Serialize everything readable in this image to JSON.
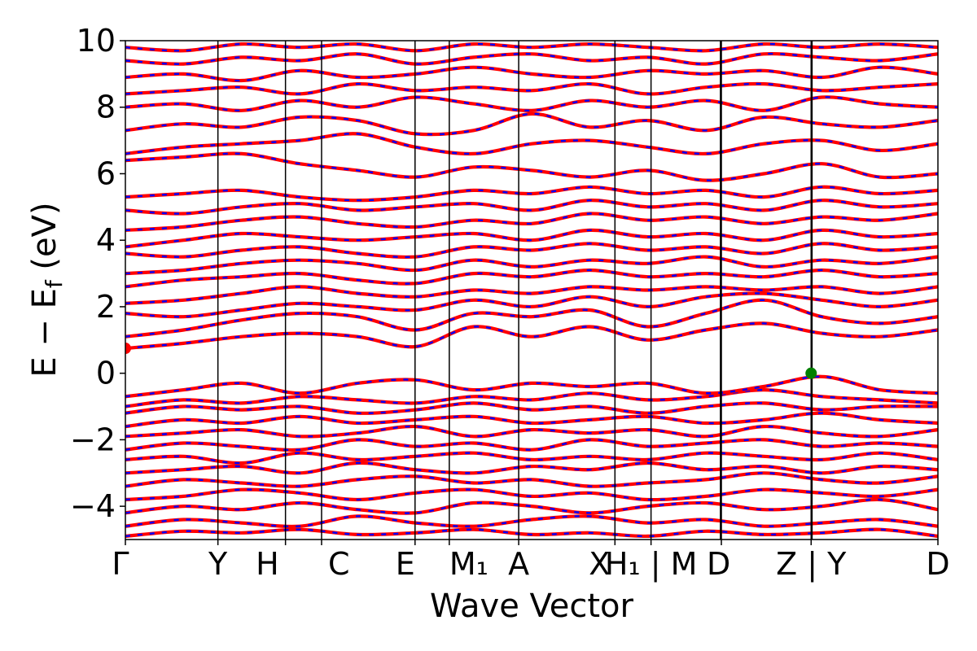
{
  "chart_data": {
    "type": "line",
    "title": "",
    "xlabel": "Wave Vector",
    "ylabel": "E − E_f (eV)",
    "ylabel_parts": {
      "main": "E − E",
      "sub": "f",
      "unit": " (eV)"
    },
    "ylim": [
      -5,
      10
    ],
    "yticks": [
      -4,
      -2,
      0,
      2,
      4,
      6,
      8,
      10
    ],
    "ytick_labels": [
      "−4",
      "−2",
      "0",
      "2",
      "4",
      "6",
      "8",
      "10"
    ],
    "grid": false,
    "legend": "none",
    "kpath": [
      {
        "label": "Γ",
        "pos": 0.0
      },
      {
        "label": "Y",
        "pos": 1.0
      },
      {
        "label": "H",
        "pos": 1.73
      },
      {
        "label": "C",
        "pos": 2.12
      },
      {
        "label": "E",
        "pos": 3.13
      },
      {
        "label": "M",
        "sub": "1",
        "pos": 3.5
      },
      {
        "label": "A",
        "pos": 4.25
      },
      {
        "label": "X",
        "pos": 5.29
      },
      {
        "label": "H",
        "sub": "1",
        "pos": 5.68,
        "break_after": true
      },
      {
        "label": "M",
        "pos": 6.43
      },
      {
        "label": "D",
        "pos": 6.44
      },
      {
        "label": "Z",
        "pos": 7.41,
        "break_after": true
      },
      {
        "label": "Y",
        "pos": 7.42
      },
      {
        "label": "D",
        "pos": 8.78
      }
    ],
    "xtick_labels": [
      "Γ",
      "Y",
      "H",
      "C",
      "E",
      "M₁",
      "A",
      "X",
      "H₁ | M",
      "D",
      "Z | Y",
      "D"
    ],
    "series": [
      {
        "color": "#ff0000",
        "style": "solid"
      },
      {
        "color": "#0000ff",
        "style": "dashed"
      }
    ],
    "cbm": {
      "k": 0.0,
      "energy": 0.75,
      "color": "#ff0000"
    },
    "vbm": {
      "k": 7.41,
      "energy": 0.0,
      "color": "#008000"
    },
    "bands": [
      [
        -4.9,
        -4.75,
        -4.8,
        -4.7,
        -4.85,
        -4.8,
        -4.7,
        -4.85,
        -4.8,
        -4.9,
        -4.75,
        -4.85,
        -4.8,
        -4.7,
        -4.9
      ],
      [
        -4.6,
        -4.4,
        -4.5,
        -4.6,
        -4.3,
        -4.5,
        -4.6,
        -4.4,
        -4.3,
        -4.5,
        -4.4,
        -4.6,
        -4.5,
        -4.4,
        -4.6
      ],
      [
        -4.2,
        -4.0,
        -4.1,
        -3.9,
        -4.1,
        -4.2,
        -3.9,
        -4.0,
        -4.2,
        -4.0,
        -3.9,
        -4.1,
        -4.0,
        -3.8,
        -4.1
      ],
      [
        -3.8,
        -3.7,
        -3.5,
        -3.6,
        -3.8,
        -3.6,
        -3.5,
        -3.7,
        -3.6,
        -3.8,
        -3.7,
        -3.5,
        -3.6,
        -3.7,
        -3.5
      ],
      [
        -3.4,
        -3.2,
        -3.3,
        -3.4,
        -3.2,
        -3.1,
        -3.3,
        -3.2,
        -3.4,
        -3.3,
        -3.2,
        -3.0,
        -3.2,
        -3.3,
        -3.1
      ],
      [
        -3.0,
        -2.9,
        -2.8,
        -3.0,
        -2.7,
        -2.9,
        -3.0,
        -2.8,
        -2.9,
        -2.7,
        -2.9,
        -2.8,
        -3.0,
        -2.8,
        -2.9
      ],
      [
        -2.6,
        -2.5,
        -2.7,
        -2.4,
        -2.6,
        -2.5,
        -2.4,
        -2.6,
        -2.5,
        -2.6,
        -2.4,
        -2.5,
        -2.6,
        -2.4,
        -2.6
      ],
      [
        -2.3,
        -2.1,
        -2.2,
        -2.3,
        -2.0,
        -2.2,
        -2.1,
        -2.3,
        -2.0,
        -2.2,
        -2.1,
        -2.0,
        -2.2,
        -2.1,
        -2.2
      ],
      [
        -1.9,
        -1.8,
        -1.7,
        -1.9,
        -1.8,
        -1.6,
        -1.9,
        -1.7,
        -1.8,
        -1.7,
        -1.9,
        -1.6,
        -1.8,
        -1.9,
        -1.7
      ],
      [
        -1.6,
        -1.4,
        -1.5,
        -1.3,
        -1.5,
        -1.4,
        -1.3,
        -1.5,
        -1.4,
        -1.3,
        -1.5,
        -1.4,
        -1.2,
        -1.4,
        -1.5
      ],
      [
        -1.2,
        -1.0,
        -1.1,
        -1.0,
        -1.2,
        -1.1,
        -0.9,
        -1.1,
        -1.0,
        -1.2,
        -1.0,
        -0.9,
        -1.1,
        -1.0,
        -1.0
      ],
      [
        -1.0,
        -0.8,
        -0.9,
        -0.7,
        -0.8,
        -0.9,
        -0.7,
        -0.8,
        -0.6,
        -0.8,
        -0.7,
        -0.5,
        -0.7,
        -0.8,
        -0.9
      ],
      [
        -0.7,
        -0.5,
        -0.3,
        -0.6,
        -0.3,
        -0.2,
        -0.5,
        -0.3,
        -0.4,
        -0.3,
        -0.6,
        -0.4,
        -0.1,
        -0.5,
        -0.6
      ],
      [
        0.75,
        0.9,
        1.1,
        1.2,
        1.1,
        0.8,
        1.4,
        1.1,
        1.4,
        1.0,
        1.3,
        1.5,
        1.2,
        1.1,
        1.3
      ],
      [
        1.1,
        1.3,
        1.6,
        1.8,
        1.7,
        1.3,
        1.8,
        1.7,
        1.9,
        1.4,
        1.8,
        2.2,
        1.7,
        1.5,
        1.7
      ],
      [
        1.8,
        1.7,
        1.9,
        2.1,
        2.0,
        1.9,
        2.2,
        2.0,
        2.3,
        2.0,
        2.3,
        2.4,
        2.2,
        2.0,
        2.2
      ],
      [
        2.1,
        2.2,
        2.4,
        2.6,
        2.4,
        2.3,
        2.5,
        2.4,
        2.6,
        2.5,
        2.6,
        2.5,
        2.6,
        2.4,
        2.6
      ],
      [
        2.6,
        2.8,
        2.9,
        3.0,
        2.8,
        2.7,
        3.0,
        2.9,
        3.1,
        2.9,
        3.0,
        2.9,
        3.1,
        2.9,
        3.0
      ],
      [
        3.0,
        3.1,
        3.3,
        3.4,
        3.3,
        3.1,
        3.4,
        3.2,
        3.4,
        3.3,
        3.5,
        3.2,
        3.4,
        3.3,
        3.5
      ],
      [
        3.6,
        3.5,
        3.7,
        3.8,
        3.6,
        3.5,
        3.8,
        3.7,
        3.9,
        3.7,
        3.8,
        3.6,
        3.9,
        3.7,
        3.8
      ],
      [
        3.8,
        4.0,
        4.2,
        4.1,
        4.0,
        4.1,
        4.2,
        4.0,
        4.3,
        4.1,
        4.2,
        4.0,
        4.3,
        4.1,
        4.2
      ],
      [
        4.3,
        4.4,
        4.6,
        4.7,
        4.5,
        4.4,
        4.6,
        4.5,
        4.8,
        4.6,
        4.7,
        4.5,
        4.7,
        4.6,
        4.8
      ],
      [
        4.9,
        4.8,
        5.0,
        5.1,
        4.9,
        5.0,
        5.1,
        4.9,
        5.2,
        5.0,
        5.1,
        4.9,
        5.2,
        5.0,
        5.1
      ],
      [
        5.3,
        5.4,
        5.5,
        5.3,
        5.2,
        5.3,
        5.5,
        5.4,
        5.6,
        5.4,
        5.5,
        5.3,
        5.6,
        5.4,
        5.5
      ],
      [
        6.4,
        6.5,
        6.6,
        6.3,
        6.1,
        5.9,
        6.2,
        6.1,
        5.9,
        6.1,
        5.8,
        6.0,
        6.3,
        5.9,
        6.0
      ],
      [
        6.6,
        6.8,
        6.9,
        7.0,
        7.2,
        6.8,
        6.6,
        6.9,
        7.0,
        6.8,
        6.6,
        6.9,
        7.0,
        6.7,
        6.9
      ],
      [
        7.3,
        7.5,
        7.4,
        7.7,
        7.6,
        7.2,
        7.3,
        7.8,
        7.4,
        7.6,
        7.3,
        7.7,
        7.5,
        7.4,
        7.6
      ],
      [
        8.0,
        8.1,
        7.9,
        8.2,
        8.0,
        8.3,
        8.1,
        7.9,
        8.2,
        8.0,
        8.2,
        7.9,
        8.3,
        8.1,
        8.0
      ],
      [
        8.4,
        8.5,
        8.6,
        8.4,
        8.7,
        8.5,
        8.6,
        8.5,
        8.7,
        8.4,
        8.6,
        8.7,
        8.5,
        8.6,
        8.7
      ],
      [
        8.9,
        9.0,
        8.8,
        9.1,
        8.9,
        9.0,
        9.2,
        9.0,
        8.9,
        9.1,
        9.0,
        9.1,
        8.9,
        9.2,
        9.0
      ],
      [
        9.4,
        9.3,
        9.5,
        9.4,
        9.6,
        9.3,
        9.5,
        9.6,
        9.4,
        9.5,
        9.3,
        9.6,
        9.5,
        9.4,
        9.6
      ],
      [
        9.8,
        9.7,
        9.9,
        9.8,
        9.9,
        9.7,
        9.9,
        9.8,
        9.9,
        9.8,
        9.7,
        9.9,
        9.8,
        9.9,
        9.8
      ]
    ]
  }
}
